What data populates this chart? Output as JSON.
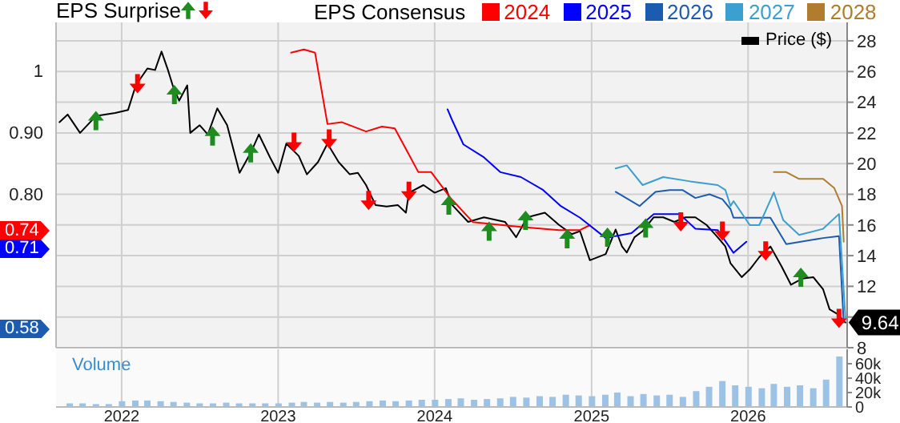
{
  "chart_data": [
    {
      "type": "line",
      "title": "EPS Surprise",
      "legend_title": "EPS Consensus",
      "legend": "top",
      "grid": true,
      "tick_labels": "y",
      "xlim": [
        "2021-08-01",
        "2026-08-20"
      ],
      "xticks": [
        "2022",
        "2023",
        "2024",
        "2025",
        "2026"
      ],
      "ylim": [
        0.55,
        1.078
      ],
      "yticks": [
        {
          "value": 0.6,
          "label": null
        },
        {
          "value": 0.7,
          "label": null
        },
        {
          "value": 0.8,
          "label": "0.80"
        },
        {
          "value": 0.9,
          "label": "0.90"
        },
        {
          "value": 1,
          "label": "1"
        }
      ],
      "y2lim": [
        8,
        29.2
      ],
      "y2ticks": [
        8,
        {
          "value": 10,
          "label": null
        },
        12,
        14,
        16,
        18,
        20,
        22,
        24,
        26,
        28
      ],
      "annotations": [
        "0.74",
        "0.71",
        "0.58"
      ],
      "series": [
        {
          "name": "Price ($)",
          "type": "line",
          "axis": "y2",
          "color": "#000000",
          "x": [
            "2021-08-09",
            "2021-08-28",
            "2021-09-26",
            "2021-11-02",
            "2021-12-17",
            "2022-01-16",
            "2022-02-03",
            "2022-03-02",
            "2022-03-20",
            "2022-04-04",
            "2022-04-19",
            "2022-04-30",
            "2022-05-15",
            "2022-06-03",
            "2022-06-10",
            "2022-07-02",
            "2022-07-21",
            "2022-08-12",
            "2022-09-04",
            "2022-10-03",
            "2022-10-29",
            "2022-11-17",
            "2022-12-13",
            "2023-01-01",
            "2023-01-20",
            "2023-02-18",
            "2023-03-09",
            "2023-04-04",
            "2023-04-26",
            "2023-05-22",
            "2023-06-17",
            "2023-07-06",
            "2023-07-25",
            "2023-08-16",
            "2023-09-11",
            "2023-10-07",
            "2023-10-26",
            "2023-11-02",
            "2023-12-06",
            "2024-01-01",
            "2024-01-27",
            "2024-02-11",
            "2024-03-19",
            "2024-04-25",
            "2024-06-13",
            "2024-07-09",
            "2024-08-04",
            "2024-09-14",
            "2024-10-17",
            "2024-11-16",
            "2024-12-05",
            "2024-12-28",
            "2025-02-03",
            "2025-02-26",
            "2025-03-13",
            "2025-03-24",
            "2025-04-11",
            "2025-04-30",
            "2025-05-26",
            "2025-06-17",
            "2025-07-13",
            "2025-08-08",
            "2025-08-31",
            "2025-09-26",
            "2025-10-22",
            "2025-11-09",
            "2025-11-21",
            "2025-12-17",
            "2026-01-05",
            "2026-01-27",
            "2026-02-22",
            "2026-03-20",
            "2026-04-11",
            "2026-05-07",
            "2026-06-02",
            "2026-06-25",
            "2026-07-10",
            "2026-07-28",
            "2026-08-16"
          ],
          "values": [
            22.7,
            23.2,
            22.0,
            23.1,
            23.3,
            23.5,
            25.1,
            26.2,
            26.1,
            27.3,
            26.1,
            25.1,
            24.1,
            25.1,
            22.0,
            22.5,
            21.9,
            23.6,
            22.5,
            19.4,
            20.7,
            21.9,
            20.4,
            19.4,
            21.3,
            20.5,
            19.3,
            20.1,
            21.3,
            20.1,
            19.3,
            19.4,
            18.6,
            17.3,
            17.2,
            17.3,
            16.8,
            18.1,
            18.6,
            18.1,
            18.4,
            17.3,
            16.2,
            16.5,
            16.2,
            15.2,
            16.5,
            16.8,
            16.0,
            15.4,
            15.6,
            13.7,
            14.1,
            15.7,
            14.6,
            14.2,
            15.2,
            15.6,
            16.5,
            16.5,
            16.2,
            16.5,
            16.5,
            16.0,
            15.2,
            14.6,
            13.5,
            12.6,
            13.1,
            13.9,
            14.6,
            13.3,
            12.1,
            12.5,
            12.6,
            11.8,
            10.5,
            10.2,
            9.64
          ],
          "value_labels": [
            null,
            null,
            null,
            null,
            null,
            null,
            null,
            null,
            null,
            null,
            null,
            null,
            null,
            null,
            null,
            null,
            null,
            null,
            null,
            null,
            null,
            null,
            null,
            null,
            null,
            null,
            null,
            null,
            null,
            null,
            null,
            null,
            null,
            null,
            null,
            null,
            null,
            null,
            null,
            null,
            null,
            null,
            null,
            null,
            null,
            null,
            null,
            null,
            null,
            null,
            null,
            null,
            null,
            null,
            null,
            null,
            null,
            null,
            null,
            null,
            null,
            null,
            null,
            null,
            null,
            null,
            null,
            null,
            null,
            null,
            null,
            null,
            null,
            null,
            null,
            null,
            null,
            null,
            "9.64"
          ]
        },
        {
          "name": "2024",
          "color": "#ff0000",
          "x": [
            "2023-01-31",
            "2023-03-02",
            "2023-03-28",
            "2023-04-26",
            "2023-05-30",
            "2023-07-25",
            "2023-08-31",
            "2023-09-30",
            "2023-11-24",
            "2023-12-24",
            "2024-02-07",
            "2024-03-30",
            "2024-07-20",
            "2024-10-17",
            "2024-12-05",
            "2024-12-28"
          ],
          "values": [
            1.029,
            1.034,
            1.029,
            0.913,
            0.916,
            0.901,
            0.909,
            0.906,
            0.835,
            0.835,
            0.793,
            0.754,
            0.746,
            0.741,
            0.741,
            0.749
          ]
        },
        {
          "name": "2025",
          "color": "#0000ff",
          "x": [
            "2024-01-31",
            "2024-02-11",
            "2024-03-08",
            "2024-04-25",
            "2024-06-02",
            "2024-07-20",
            "2024-09-10",
            "2024-10-21",
            "2024-12-05",
            "2025-02-03",
            "2025-04-04",
            "2025-05-26",
            "2025-07-25",
            "2025-08-31",
            "2025-10-22",
            "2025-11-28",
            "2025-12-28"
          ],
          "values": [
            0.937,
            0.919,
            0.88,
            0.859,
            0.835,
            0.827,
            0.806,
            0.78,
            0.761,
            0.728,
            0.736,
            0.767,
            0.767,
            0.743,
            0.741,
            0.704,
            0.722
          ]
        },
        {
          "name": "2026",
          "color": "#1c5cb0",
          "x": [
            "2025-02-26",
            "2025-04-23",
            "2025-05-30",
            "2025-07-02",
            "2025-08-01",
            "2025-08-31",
            "2025-10-03",
            "2025-11-02",
            "2025-11-21",
            "2025-11-28",
            "2026-01-05",
            "2026-02-22",
            "2026-03-31",
            "2026-06-25",
            "2026-08-01",
            "2026-08-12"
          ],
          "values": [
            0.803,
            0.78,
            0.803,
            0.806,
            0.806,
            0.793,
            0.799,
            0.791,
            0.775,
            0.761,
            0.761,
            0.761,
            0.718,
            0.728,
            0.731,
            0.591
          ]
        },
        {
          "name": "2027",
          "color": "#3b9fd0",
          "x": [
            "2025-02-26",
            "2025-03-24",
            "2025-04-30",
            "2025-06-17",
            "2025-08-19",
            "2025-10-22",
            "2025-11-09",
            "2025-11-21",
            "2025-11-28",
            "2026-01-05",
            "2026-01-27",
            "2026-03-02",
            "2026-03-24",
            "2026-04-30",
            "2026-06-25",
            "2026-08-01",
            "2026-08-16"
          ],
          "values": [
            0.841,
            0.846,
            0.814,
            0.827,
            0.82,
            0.814,
            0.806,
            0.78,
            0.788,
            0.749,
            0.749,
            0.802,
            0.757,
            0.733,
            0.743,
            0.767,
            0.597
          ]
        },
        {
          "name": "2028",
          "color": "#b07d2e",
          "x": [
            "2026-03-02",
            "2026-03-31",
            "2026-04-30",
            "2026-06-25",
            "2026-07-21",
            "2026-08-08",
            "2026-08-12"
          ],
          "values": [
            0.835,
            0.835,
            0.824,
            0.824,
            0.809,
            0.78,
            0.722
          ]
        },
        {
          "type": "scatter",
          "axis": "y2",
          "marker": "triangle",
          "color": "#1e8c1e",
          "x": [
            "2021-11-02",
            "2022-05-04",
            "2022-08-01",
            "2022-10-29",
            "2024-02-03",
            "2024-05-07",
            "2024-07-31",
            "2024-11-05",
            "2025-02-07",
            "2025-05-07",
            "2026-05-04"
          ],
          "values": [
            22.8,
            24.5,
            21.8,
            20.7,
            17.3,
            15.6,
            16.3,
            15.1,
            15.2,
            15.8,
            12.6
          ]
        },
        {
          "type": "scatter",
          "axis": "y2",
          "marker": "triangle-down",
          "color": "#ff0000",
          "x": [
            "2022-02-07",
            "2023-02-07",
            "2023-04-30",
            "2023-07-31",
            "2023-11-02",
            "2025-07-28",
            "2025-11-02",
            "2026-02-11",
            "2026-08-01"
          ],
          "values": [
            25.2,
            21.4,
            21.6,
            17.6,
            18.2,
            16.2,
            15.6,
            14.3,
            9.9
          ]
        }
      ]
    },
    {
      "type": "bar",
      "title": "Volume",
      "grid": "x",
      "color": "#9cc3e6",
      "xlim": [
        "2021-08-01",
        "2026-08-20"
      ],
      "xticks": [
        "2022",
        "2023",
        "2024",
        "2025",
        "2026"
      ],
      "ylim": [
        0,
        80000
      ],
      "yticks": [
        {
          "value": 0,
          "label": "0"
        },
        {
          "value": 20000,
          "label": "20k"
        },
        {
          "value": 40000,
          "label": "40k"
        },
        {
          "value": 60000,
          "label": "60k"
        }
      ],
      "x": [
        "2021-09",
        "2021-10",
        "2021-11",
        "2021-12",
        "2022-01",
        "2022-02",
        "2022-03",
        "2022-04",
        "2022-05",
        "2022-06",
        "2022-07",
        "2022-08",
        "2022-09",
        "2022-10",
        "2022-11",
        "2022-12",
        "2023-01",
        "2023-02",
        "2023-03",
        "2023-04",
        "2023-05",
        "2023-06",
        "2023-07",
        "2023-08",
        "2023-09",
        "2023-10",
        "2023-11",
        "2023-12",
        "2024-01",
        "2024-02",
        "2024-03",
        "2024-04",
        "2024-05",
        "2024-06",
        "2024-07",
        "2024-08",
        "2024-09",
        "2024-10",
        "2024-11",
        "2024-12",
        "2025-01",
        "2025-02",
        "2025-03",
        "2025-04",
        "2025-05",
        "2025-06",
        "2025-07",
        "2025-08",
        "2025-09",
        "2025-10",
        "2025-11",
        "2025-12",
        "2026-01",
        "2026-02",
        "2026-03",
        "2026-04",
        "2026-05",
        "2026-06",
        "2026-07",
        "2026-08"
      ],
      "values": [
        5000,
        5000,
        4000,
        4000,
        8000,
        9000,
        9000,
        8000,
        7000,
        6000,
        5000,
        5000,
        6000,
        5000,
        5000,
        5000,
        5000,
        6000,
        7000,
        6000,
        7000,
        6000,
        7000,
        8000,
        9000,
        8000,
        9000,
        10000,
        10000,
        11000,
        12000,
        10000,
        11000,
        12000,
        14000,
        13000,
        15000,
        14000,
        17000,
        16000,
        15000,
        17000,
        20000,
        15000,
        18000,
        16000,
        17000,
        14000,
        22000,
        28000,
        36000,
        30000,
        28000,
        26000,
        32000,
        28000,
        30000,
        26000,
        38000,
        70000
      ]
    }
  ]
}
